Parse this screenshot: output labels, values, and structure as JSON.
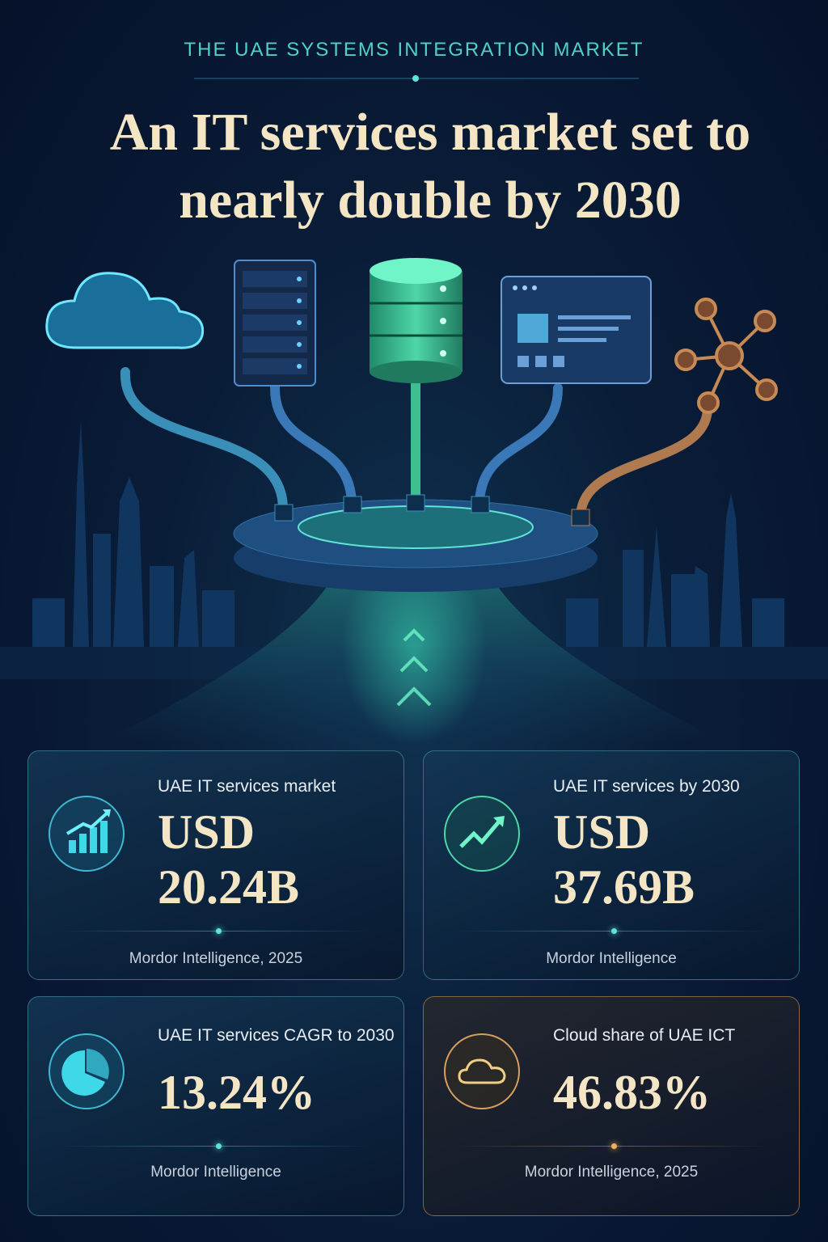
{
  "header": {
    "kicker": "THE UAE SYSTEMS INTEGRATION MARKET",
    "title": "An IT services market set to nearly double by 2030"
  },
  "cards": [
    {
      "label": "UAE IT services market",
      "value": "USD 20.24B",
      "source": "Mordor Intelligence, 2025"
    },
    {
      "label": "UAE IT services by 2030",
      "value": "USD 37.69B",
      "source": "Mordor Intelligence"
    },
    {
      "label": "UAE IT services CAGR to 2030",
      "value": "13.24%",
      "source": "Mordor Intelligence"
    },
    {
      "label": "Cloud share of UAE ICT",
      "value": "46.83%",
      "source": "Mordor Intelligence, 2025"
    }
  ]
}
